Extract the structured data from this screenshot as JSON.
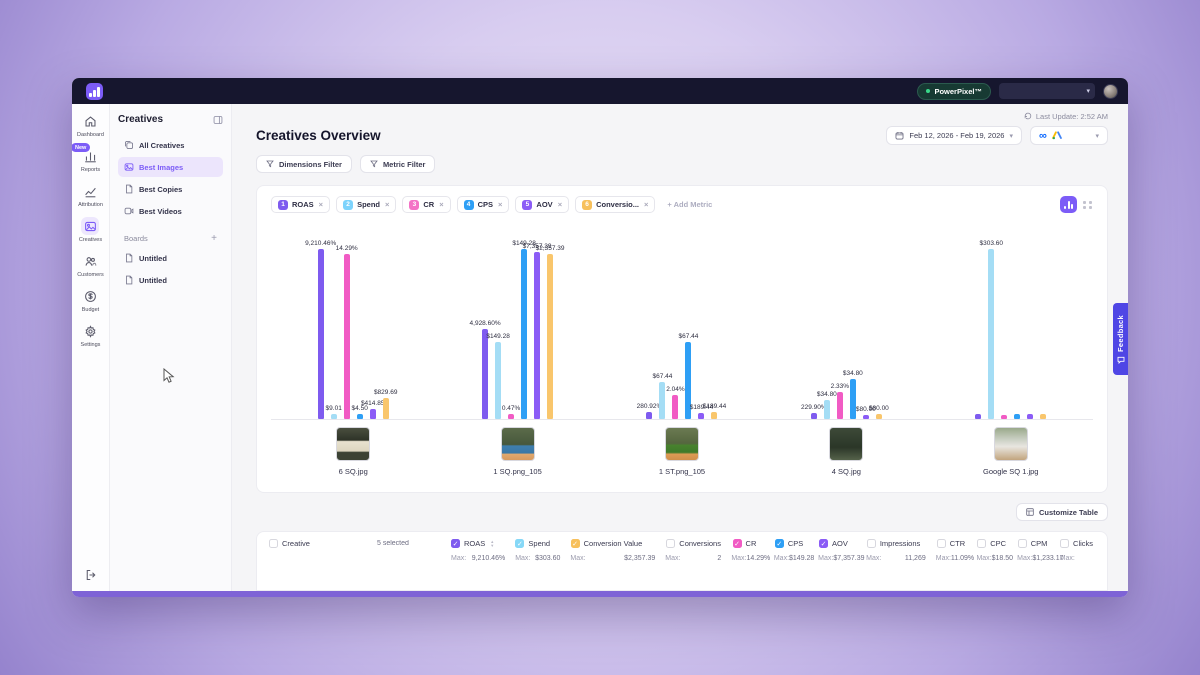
{
  "topbar": {
    "brand": "PowerPixel™"
  },
  "sidebar": {
    "items": [
      {
        "label": "Dashboard",
        "icon": "home"
      },
      {
        "label": "Reports",
        "icon": "reports",
        "badge": "New"
      },
      {
        "label": "Attribution",
        "icon": "attribution"
      },
      {
        "label": "Creatives",
        "icon": "creatives",
        "active": true
      },
      {
        "label": "Customers",
        "icon": "customers"
      },
      {
        "label": "Budget",
        "icon": "budget"
      },
      {
        "label": "Settings",
        "icon": "settings"
      }
    ]
  },
  "panel": {
    "title": "Creatives",
    "items": [
      {
        "label": "All Creatives",
        "icon": "copies"
      },
      {
        "label": "Best Images",
        "icon": "image",
        "active": true
      },
      {
        "label": "Best Copies",
        "icon": "doc"
      },
      {
        "label": "Best Videos",
        "icon": "video"
      }
    ],
    "boards_title": "Boards",
    "boards_add": "+",
    "boards": [
      {
        "label": "Untitled"
      },
      {
        "label": "Untitled"
      }
    ]
  },
  "header": {
    "title": "Creatives Overview",
    "last_update": "Last Update: 2:52 AM",
    "date_range": "Feb 12, 2026 - Feb 19, 2026"
  },
  "filters": {
    "dimensions_label": "Dimensions Filter",
    "metric_label": "Metric Filter"
  },
  "metrics_bar": {
    "chips": [
      {
        "num": "1",
        "label": "ROAS",
        "color": "#7e5bef"
      },
      {
        "num": "2",
        "label": "Spend",
        "color": "#7dd3fc"
      },
      {
        "num": "3",
        "label": "CR",
        "color": "#f472c6"
      },
      {
        "num": "4",
        "label": "CPS",
        "color": "#2e9ff5"
      },
      {
        "num": "5",
        "label": "AOV",
        "color": "#8b5cf6"
      },
      {
        "num": "6",
        "label": "Conversio...",
        "color": "#f7c05c"
      }
    ],
    "add_label": "+ Add Metric"
  },
  "chart_data": {
    "type": "bar",
    "categories": [
      "6 SQ.jpg",
      "1 SQ.png_105",
      "1 ST.png_105",
      "4 SQ.jpg",
      "Google SQ 1.jpg"
    ],
    "series": [
      {
        "name": "ROAS",
        "color": "#7e5bef",
        "values": [
          9210.46,
          4928.6,
          280.92,
          229.9,
          null
        ],
        "labels": [
          "9,210.46%",
          "4,928.60%",
          "280.92%",
          "229.90%",
          ""
        ],
        "display_heights": [
          1.0,
          0.53,
          0.04,
          0.033,
          0.03
        ]
      },
      {
        "name": "Spend",
        "color": "#a4ddf5",
        "values": [
          9.01,
          149.28,
          67.44,
          34.8,
          303.6
        ],
        "labels": [
          "$9.01",
          "$149.28",
          "$67.44",
          "$34.80",
          "$303.60"
        ],
        "display_heights": [
          0.03,
          0.45,
          0.22,
          0.11,
          1.0
        ]
      },
      {
        "name": "CR",
        "color": "#f15bc4",
        "values": [
          14.29,
          0.47,
          2.04,
          2.33,
          null
        ],
        "labels": [
          "14.29%",
          "0.47%",
          "2.04%",
          "2.33%",
          ""
        ],
        "display_heights": [
          0.97,
          0.03,
          0.14,
          0.16,
          0.025
        ]
      },
      {
        "name": "CPS",
        "color": "#2e9ff5",
        "values": [
          4.5,
          149.28,
          67.44,
          34.8,
          null
        ],
        "labels": [
          "$4.50",
          "$149.28",
          "$67.44",
          "$34.80",
          ""
        ],
        "display_heights": [
          0.03,
          1.0,
          0.45,
          0.235,
          0.03
        ]
      },
      {
        "name": "AOV",
        "color": "#8b5cf6",
        "values": [
          414.85,
          7357.39,
          189.44,
          80.0,
          null
        ],
        "labels": [
          "$414.85",
          "$7,357.39",
          "$189.44",
          "$80.00",
          ""
        ],
        "display_heights": [
          0.058,
          0.98,
          0.033,
          0.025,
          0.03
        ]
      },
      {
        "name": "Conversion Value",
        "color": "#f9c66c",
        "values": [
          829.69,
          2357.39,
          189.44,
          80.0,
          null
        ],
        "labels": [
          "$829.69",
          "$2,357.39",
          "$189.44",
          "$80.00",
          ""
        ],
        "display_heights": [
          0.125,
          0.97,
          0.04,
          0.028,
          0.03
        ]
      }
    ],
    "thumbs": [
      "linear-gradient(180deg,#4a4f3f 0%,#2e3328 38%,#e8e2cf 42%,#ddd6c0 72%,#3c4234 76%)",
      "linear-gradient(180deg,#5b6b4a 0%,#47583c 52%,#3f7fae 56%,#3a78a6 78%,#e0a86e 82%,#d89a5e 100%)",
      "linear-gradient(180deg,#6b7a52 0%,#55663f 48%,#48822e 54%,#3f7a2a 76%,#dd9b55 82%,#d08f4a 100%)",
      "linear-gradient(180deg,#3d4a38 0%,#2b3628 60%,#55624a 100%)",
      "linear-gradient(180deg,#9aa98a 0%,#c9cfc2 35%,#e8e6e0 58%,#c2a57e 100%)"
    ],
    "legend_position": "none",
    "grid": false
  },
  "table": {
    "customize_label": "Customize Table",
    "selected_text": "5 selected",
    "max_prefix": "Max:",
    "columns": [
      {
        "label": "Creative",
        "checked": false,
        "max": ""
      },
      {
        "label": "ROAS",
        "checked": true,
        "color": "#7e5bef",
        "sort": true,
        "max": "9,210.46%"
      },
      {
        "label": "Spend",
        "checked": true,
        "color": "#86d8f7",
        "max": "$303.60"
      },
      {
        "label": "Conversion Value",
        "checked": true,
        "color": "#f7c05c",
        "max": "$2,357.39"
      },
      {
        "label": "Conversions",
        "checked": false,
        "max": "2"
      },
      {
        "label": "CR",
        "checked": true,
        "color": "#f15bc4",
        "max": "14.29%"
      },
      {
        "label": "CPS",
        "checked": true,
        "color": "#2e9ff5",
        "max": "$149.28"
      },
      {
        "label": "AOV",
        "checked": true,
        "color": "#8b5cf6",
        "max": "$7,357.39"
      },
      {
        "label": "Impressions",
        "checked": false,
        "max": "11,269"
      },
      {
        "label": "CTR",
        "checked": false,
        "max": "11.09%"
      },
      {
        "label": "CPC",
        "checked": false,
        "max": "$18.50"
      },
      {
        "label": "CPM",
        "checked": false,
        "max": "$1,233.17"
      },
      {
        "label": "Clicks",
        "checked": false,
        "max": ""
      }
    ]
  },
  "feedback": {
    "label": "Feedback"
  }
}
